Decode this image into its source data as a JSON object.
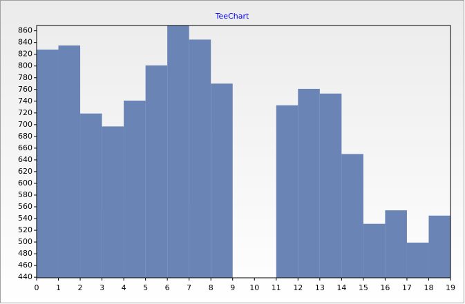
{
  "chart_data": {
    "type": "histogram",
    "title": "TeeChart",
    "bins": [
      0,
      1,
      2,
      3,
      4,
      5,
      6,
      7,
      8,
      9,
      10,
      11,
      12,
      13,
      14,
      15,
      16,
      17,
      18,
      19
    ],
    "values": [
      828,
      835,
      719,
      697,
      741,
      801,
      869,
      845,
      770,
      null,
      null,
      733,
      761,
      753,
      650,
      531,
      554,
      499,
      545
    ],
    "color": "#6a84b5",
    "xlim": [
      0,
      19
    ],
    "xticks": [
      0,
      1,
      2,
      3,
      4,
      5,
      6,
      7,
      8,
      9,
      10,
      11,
      12,
      13,
      14,
      15,
      16,
      17,
      18,
      19
    ],
    "ylim": [
      439,
      869
    ],
    "yticks": [
      440,
      460,
      480,
      500,
      520,
      540,
      560,
      580,
      600,
      620,
      640,
      660,
      680,
      700,
      720,
      740,
      760,
      780,
      800,
      820,
      840,
      860
    ]
  }
}
